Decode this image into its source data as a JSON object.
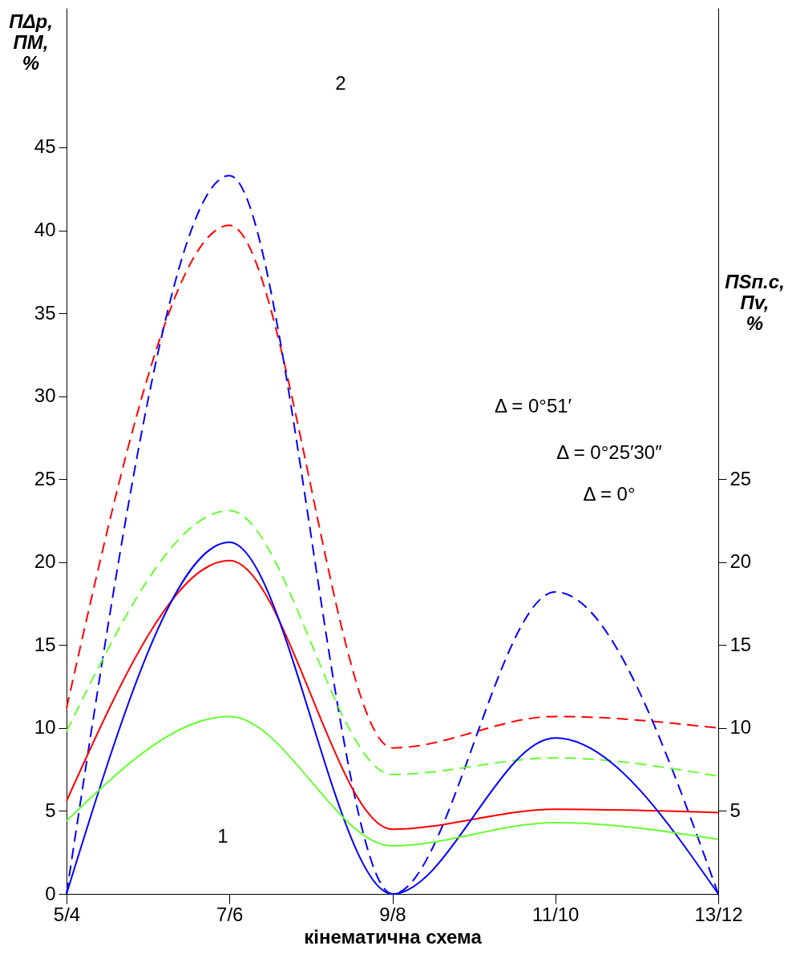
{
  "chart_data": {
    "type": "line",
    "xlabel": "кінематична схема",
    "ylabel": "ПΔp, ПM, %",
    "y2label": "ПSп.с, Пv, %",
    "categories": [
      "5/4",
      "7/6",
      "9/8",
      "11/10",
      "13/12"
    ],
    "ylim": [
      0,
      53.4
    ],
    "yticks": [
      0,
      5,
      10,
      15,
      20,
      25,
      30,
      35,
      40,
      45
    ],
    "y2lim": [
      0,
      53.4
    ],
    "y2ticks": [
      5,
      10,
      15,
      20,
      25
    ],
    "grid": false,
    "marker": "none",
    "series": [
      {
        "color": "#ff0000",
        "line_style": "dashed",
        "values": [
          11.2,
          40.3,
          8.8,
          10.7,
          10.0
        ]
      },
      {
        "color": "#0000ff",
        "line_style": "dashed",
        "values": [
          0,
          43.3,
          0,
          18.2,
          0
        ]
      },
      {
        "color": "#66ff33",
        "line_style": "dashed",
        "values": [
          9.8,
          23.1,
          7.2,
          8.2,
          7.1
        ]
      },
      {
        "color": "#ff0000",
        "line_style": "solid",
        "values": [
          5.6,
          20.1,
          3.9,
          5.1,
          4.9
        ]
      },
      {
        "color": "#0000ff",
        "line_style": "solid",
        "values": [
          0,
          21.2,
          0,
          9.4,
          0
        ]
      },
      {
        "color": "#66ff33",
        "line_style": "solid",
        "values": [
          4.4,
          10.7,
          2.9,
          4.3,
          3.3
        ]
      }
    ],
    "annotations": [
      "2",
      "1",
      "Δ = 0°51′",
      "Δ = 0°25′30″",
      "Δ = 0°"
    ]
  }
}
